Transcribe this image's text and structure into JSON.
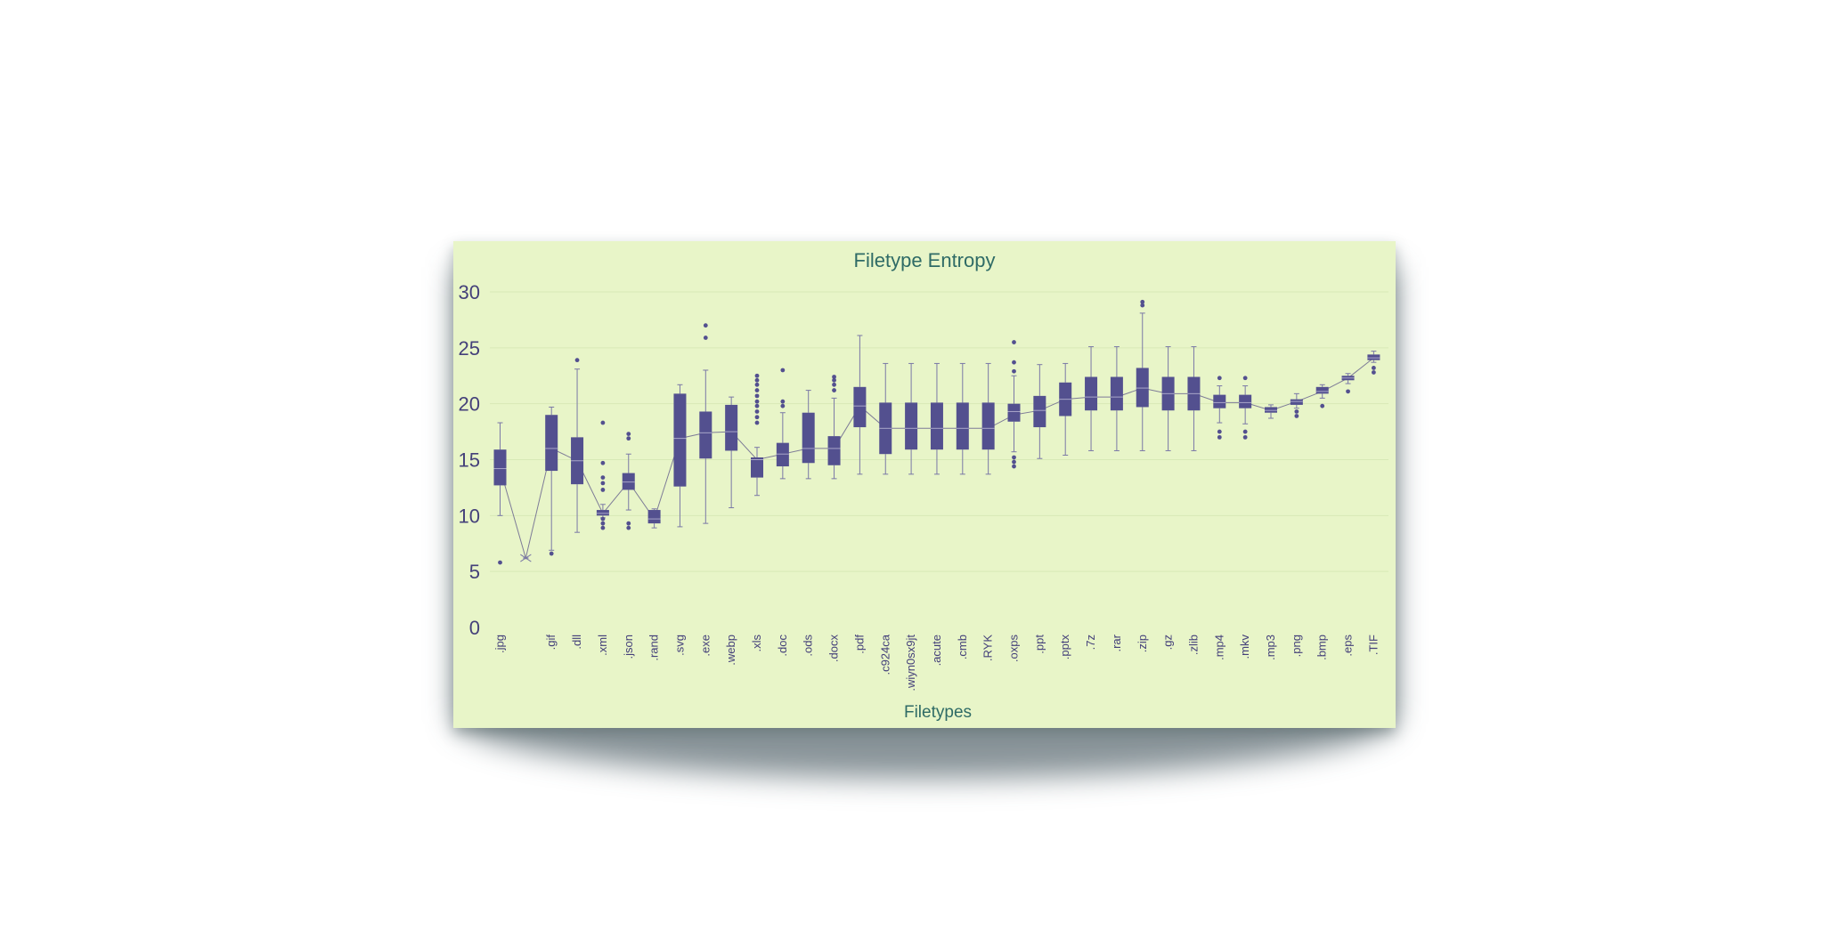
{
  "chart_data": {
    "type": "box",
    "title": "Filetype Entropy",
    "xlabel": "Filetypes",
    "ylabel": "",
    "ylim": [
      0,
      30
    ],
    "yticks": [
      0,
      5,
      10,
      15,
      20,
      25,
      30
    ],
    "grid": true,
    "color": "#53508f",
    "background": "#e8f5c8",
    "categories": [
      ".jpg",
      "",
      ".gif",
      ".dll",
      ".xml",
      ".json",
      ".rand",
      ".svg",
      ".exe",
      ".webp",
      ".xls",
      ".doc",
      ".ods",
      ".docx",
      ".pdf",
      ".c924ca",
      ".wiyn0sx9jt",
      ".acute",
      ".cmb",
      ".RYK",
      ".oxps",
      ".ppt",
      ".pptx",
      ".7z",
      ".rar",
      ".zip",
      ".gz",
      ".zlib",
      ".mp4",
      ".mkv",
      ".mp3",
      ".png",
      ".bmp",
      ".eps",
      ".TIF"
    ],
    "boxes": [
      {
        "min": 10.0,
        "q1": 12.7,
        "median": 14.2,
        "q3": 15.9,
        "max": 18.3,
        "outliers": [
          5.8
        ],
        "mean": 14.2
      },
      {
        "min": 6.2,
        "q1": 6.2,
        "median": 6.2,
        "q3": 6.2,
        "max": 6.2,
        "outliers": [],
        "mean": 6.2
      },
      {
        "min": 6.9,
        "q1": 14.0,
        "median": 16.0,
        "q3": 19.0,
        "max": 19.7,
        "outliers": [
          6.6
        ],
        "mean": 16.0
      },
      {
        "min": 8.5,
        "q1": 12.8,
        "median": 14.9,
        "q3": 17.0,
        "max": 23.1,
        "outliers": [
          23.9
        ],
        "mean": 14.9
      },
      {
        "min": 9.8,
        "q1": 10.0,
        "median": 10.2,
        "q3": 10.5,
        "max": 11.0,
        "outliers": [
          8.9,
          9.3,
          9.7,
          12.3,
          12.9,
          13.4,
          14.7,
          18.3
        ],
        "mean": 10.2
      },
      {
        "min": 10.5,
        "q1": 12.3,
        "median": 13.0,
        "q3": 13.8,
        "max": 15.5,
        "outliers": [
          8.9,
          9.3,
          16.9,
          17.3
        ],
        "mean": 13.0
      },
      {
        "min": 8.9,
        "q1": 9.3,
        "median": 9.7,
        "q3": 10.5,
        "max": 10.6,
        "outliers": [],
        "mean": 9.7
      },
      {
        "min": 9.0,
        "q1": 12.6,
        "median": 16.9,
        "q3": 20.9,
        "max": 21.7,
        "outliers": [],
        "mean": 16.9
      },
      {
        "min": 9.3,
        "q1": 15.1,
        "median": 17.4,
        "q3": 19.3,
        "max": 23.0,
        "outliers": [
          25.9,
          27.0
        ],
        "mean": 17.4
      },
      {
        "min": 10.7,
        "q1": 15.8,
        "median": 17.5,
        "q3": 19.9,
        "max": 20.6,
        "outliers": [],
        "mean": 17.5
      },
      {
        "min": 11.8,
        "q1": 13.4,
        "median": 15.0,
        "q3": 15.2,
        "max": 16.1,
        "outliers": [
          18.3,
          18.8,
          19.3,
          19.8,
          20.2,
          20.7,
          21.2,
          21.7,
          22.1,
          22.5
        ],
        "mean": 15.0
      },
      {
        "min": 13.3,
        "q1": 14.4,
        "median": 15.5,
        "q3": 16.5,
        "max": 19.2,
        "outliers": [
          19.8,
          20.2,
          23.0
        ],
        "mean": 15.5
      },
      {
        "min": 13.3,
        "q1": 14.7,
        "median": 16.0,
        "q3": 19.2,
        "max": 21.2,
        "outliers": [],
        "mean": 16.0
      },
      {
        "min": 13.3,
        "q1": 14.5,
        "median": 16.0,
        "q3": 17.1,
        "max": 20.5,
        "outliers": [
          21.2,
          21.7,
          22.1,
          22.4
        ],
        "mean": 16.0
      },
      {
        "min": 13.7,
        "q1": 17.9,
        "median": 19.8,
        "q3": 21.5,
        "max": 26.1,
        "outliers": [],
        "mean": 19.8
      },
      {
        "min": 13.7,
        "q1": 15.5,
        "median": 17.8,
        "q3": 20.1,
        "max": 23.6,
        "outliers": [],
        "mean": 17.8
      },
      {
        "min": 13.7,
        "q1": 15.9,
        "median": 17.8,
        "q3": 20.1,
        "max": 23.6,
        "outliers": [],
        "mean": 17.8
      },
      {
        "min": 13.7,
        "q1": 15.9,
        "median": 17.8,
        "q3": 20.1,
        "max": 23.6,
        "outliers": [],
        "mean": 17.8
      },
      {
        "min": 13.7,
        "q1": 15.9,
        "median": 17.8,
        "q3": 20.1,
        "max": 23.6,
        "outliers": [],
        "mean": 17.8
      },
      {
        "min": 13.7,
        "q1": 15.9,
        "median": 17.8,
        "q3": 20.1,
        "max": 23.6,
        "outliers": [],
        "mean": 17.8
      },
      {
        "min": 15.7,
        "q1": 18.4,
        "median": 19.3,
        "q3": 20.0,
        "max": 22.5,
        "outliers": [
          14.4,
          14.8,
          15.2,
          22.9,
          23.7,
          25.5
        ],
        "mean": 19.0
      },
      {
        "min": 15.1,
        "q1": 17.9,
        "median": 19.4,
        "q3": 20.7,
        "max": 23.5,
        "outliers": [],
        "mean": 19.4
      },
      {
        "min": 15.4,
        "q1": 18.9,
        "median": 20.4,
        "q3": 21.9,
        "max": 23.6,
        "outliers": [],
        "mean": 20.4
      },
      {
        "min": 15.8,
        "q1": 19.4,
        "median": 20.6,
        "q3": 22.4,
        "max": 25.1,
        "outliers": [],
        "mean": 20.6
      },
      {
        "min": 15.8,
        "q1": 19.4,
        "median": 20.6,
        "q3": 22.4,
        "max": 25.1,
        "outliers": [],
        "mean": 20.6
      },
      {
        "min": 15.8,
        "q1": 19.7,
        "median": 21.4,
        "q3": 23.2,
        "max": 28.1,
        "outliers": [
          28.8,
          29.1
        ],
        "mean": 21.4
      },
      {
        "min": 15.8,
        "q1": 19.4,
        "median": 20.9,
        "q3": 22.4,
        "max": 25.1,
        "outliers": [],
        "mean": 20.9
      },
      {
        "min": 15.8,
        "q1": 19.4,
        "median": 20.9,
        "q3": 22.4,
        "max": 25.1,
        "outliers": [],
        "mean": 20.9
      },
      {
        "min": 18.3,
        "q1": 19.6,
        "median": 20.1,
        "q3": 20.8,
        "max": 21.6,
        "outliers": [
          17.0,
          17.5,
          22.3
        ],
        "mean": 20.1
      },
      {
        "min": 18.2,
        "q1": 19.6,
        "median": 20.1,
        "q3": 20.8,
        "max": 21.6,
        "outliers": [
          17.0,
          17.5,
          22.3
        ],
        "mean": 20.1
      },
      {
        "min": 18.7,
        "q1": 19.2,
        "median": 19.4,
        "q3": 19.7,
        "max": 19.9,
        "outliers": [],
        "mean": 19.4
      },
      {
        "min": 19.6,
        "q1": 19.9,
        "median": 20.2,
        "q3": 20.4,
        "max": 20.9,
        "outliers": [
          18.9,
          19.3
        ],
        "mean": 20.2
      },
      {
        "min": 20.5,
        "q1": 20.9,
        "median": 21.1,
        "q3": 21.5,
        "max": 21.7,
        "outliers": [
          19.8
        ],
        "mean": 21.1
      },
      {
        "min": 21.8,
        "q1": 22.1,
        "median": 22.3,
        "q3": 22.5,
        "max": 22.7,
        "outliers": [
          21.1
        ],
        "mean": 22.3
      },
      {
        "min": 23.7,
        "q1": 23.9,
        "median": 24.1,
        "q3": 24.4,
        "max": 24.7,
        "outliers": [
          22.8,
          23.2
        ],
        "mean": 24.1
      }
    ]
  }
}
